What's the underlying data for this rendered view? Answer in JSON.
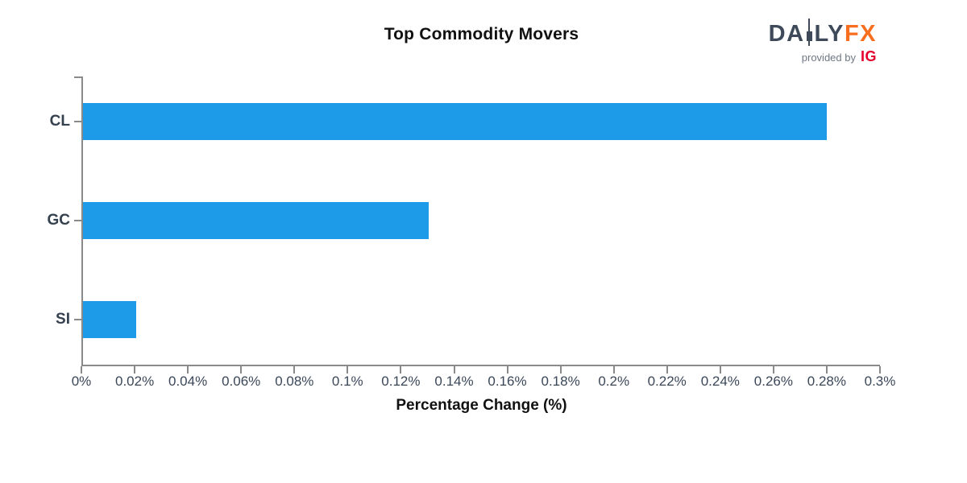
{
  "header": {
    "logo": {
      "text_da": "DA",
      "text_ly": "LY",
      "text_fx": "FX",
      "tagline": "provided by",
      "provider": "IG",
      "daily_color": "#3E4A59",
      "fx_color": "#F86E1E",
      "tagline_color": "#6E7883",
      "provider_color": "#E4002C",
      "candle_icon": "candlestick-icon"
    }
  },
  "chart_data": {
    "type": "bar",
    "orientation": "horizontal",
    "title": "Top Commodity Movers",
    "xlabel": "Percentage Change (%)",
    "categories": [
      "CL",
      "GC",
      "SI"
    ],
    "values": [
      0.28,
      0.13,
      0.02
    ],
    "value_unit": "%",
    "xlim": [
      0,
      0.3
    ],
    "x_tick_values": [
      0,
      0.02,
      0.04,
      0.06,
      0.08,
      0.1,
      0.12,
      0.14,
      0.16,
      0.18,
      0.2,
      0.22,
      0.24,
      0.26,
      0.28,
      0.3
    ],
    "x_tick_labels": [
      "0%",
      "0.02%",
      "0.04%",
      "0.06%",
      "0.08%",
      "0.1%",
      "0.12%",
      "0.14%",
      "0.16%",
      "0.18%",
      "0.2%",
      "0.22%",
      "0.24%",
      "0.26%",
      "0.28%",
      "0.3%"
    ],
    "grid": false,
    "legend": false,
    "bar_color": "#1E9BE8",
    "axis_color": "#8A8A8A",
    "tick_label_color": "#3A4759",
    "category_label_color": "#35414F",
    "title_color": "#111111"
  }
}
